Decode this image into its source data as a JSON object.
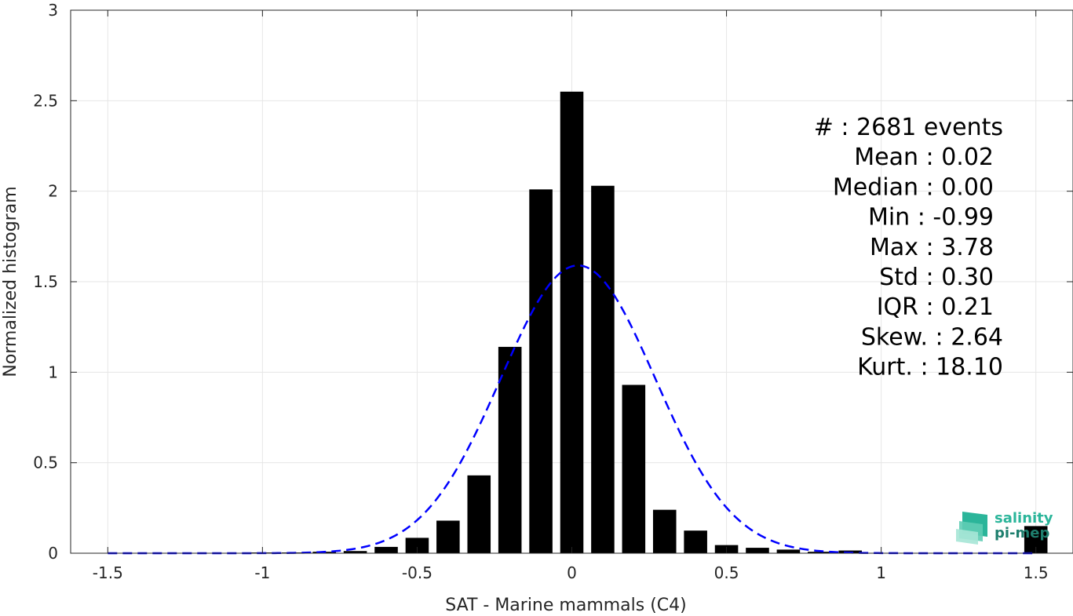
{
  "chart_data": {
    "type": "bar",
    "xlabel": "SAT - Marine mammals (C4)",
    "ylabel": "Normalized histogram",
    "xlim": [
      -1.62,
      1.62
    ],
    "ylim": [
      0,
      3
    ],
    "xticks": [
      -1.5,
      -1,
      -0.5,
      0,
      0.5,
      1,
      1.5
    ],
    "xtick_labels": [
      "-1.5",
      "-1",
      "-0.5",
      "0",
      "0.5",
      "1",
      "1.5"
    ],
    "yticks": [
      0,
      0.5,
      1,
      1.5,
      2,
      2.5,
      3
    ],
    "ytick_labels": [
      "0",
      "0.5",
      "1",
      "1.5",
      "2",
      "2.5",
      "3"
    ],
    "grid": true,
    "bar_color": "#000000",
    "curve_color": "#0000ff",
    "bar_width": 0.075,
    "bars": {
      "x": [
        -1.5,
        -1.4,
        -1.3,
        -1.2,
        -1.1,
        -1.0,
        -0.9,
        -0.8,
        -0.7,
        -0.6,
        -0.5,
        -0.4,
        -0.3,
        -0.2,
        -0.1,
        0.0,
        0.1,
        0.2,
        0.3,
        0.4,
        0.5,
        0.6,
        0.7,
        0.8,
        0.9,
        1.0,
        1.1,
        1.2,
        1.3,
        1.4,
        1.5
      ],
      "values": [
        0,
        0,
        0,
        0,
        0,
        0.004,
        0.004,
        0.008,
        0.012,
        0.035,
        0.085,
        0.18,
        0.43,
        1.14,
        2.01,
        2.55,
        2.03,
        0.93,
        0.24,
        0.125,
        0.045,
        0.03,
        0.02,
        0.008,
        0.015,
        0,
        0,
        0,
        0,
        0,
        0.15
      ]
    },
    "gaussian_fit": {
      "mean": 0.02,
      "std": 0.25,
      "peak": 1.59,
      "x_start": -1.5,
      "x_end": 1.5
    },
    "stats": [
      {
        "label": "#  : 2681 events",
        "key": "count"
      },
      {
        "label": "Mean : 0.02",
        "key": "mean"
      },
      {
        "label": "Median : 0.00",
        "key": "median"
      },
      {
        "label": "Min : -0.99",
        "key": "min"
      },
      {
        "label": "Max : 3.78",
        "key": "max"
      },
      {
        "label": "Std : 0.30",
        "key": "std"
      },
      {
        "label": "IQR : 0.21",
        "key": "iqr"
      },
      {
        "label": "Skew. : 2.64",
        "key": "skew"
      },
      {
        "label": "Kurt. : 18.10",
        "key": "kurt"
      }
    ]
  },
  "logo": {
    "line1": "salinity",
    "line2": "pi-mep",
    "color1": "#2bb59a",
    "color2": "#1e7f6e"
  }
}
